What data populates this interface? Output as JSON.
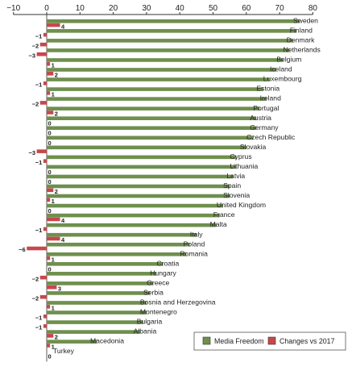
{
  "chart_data": {
    "type": "bar",
    "orientation": "horizontal",
    "xlim": [
      -10,
      80
    ],
    "xticks": [
      "−10",
      "0",
      "10",
      "20",
      "30",
      "40",
      "50",
      "60",
      "70",
      "80"
    ],
    "grid": false,
    "legend_position": "bottom-right",
    "categories": [
      "Sweden",
      "Finland",
      "Denmark",
      "Netherlands",
      "Belgium",
      "Iceland",
      "Luxembourg",
      "Estonia",
      "Ireland",
      "Portugal",
      "Austria",
      "Germany",
      "Czech Republic",
      "Slovakia",
      "Cyprus",
      "Lithuania",
      "Latvia",
      "Spain",
      "Slovenia",
      "United Kingdom",
      "France",
      "Malta",
      "Italy",
      "Poland",
      "Romania",
      "Croatia",
      "Hungary",
      "Greece",
      "Serbia",
      "Bosnia and Herzegovina",
      "Montenegro",
      "Bulgaria",
      "Albania",
      "Macedonia",
      "Turkey"
    ],
    "series": [
      {
        "name": "Media Freedom",
        "color": "#6f8f4e",
        "values": [
          76,
          75,
          74,
          73,
          71,
          69,
          67,
          65,
          66,
          64,
          63,
          63,
          62,
          60,
          57,
          57,
          56,
          55,
          55,
          53,
          52,
          51,
          45,
          43,
          42,
          35,
          33,
          32,
          31,
          30,
          30,
          29,
          28,
          15,
          0
        ]
      },
      {
        "name": "Changes vs 2017",
        "color": "#c8474b",
        "values": [
          4,
          -1,
          -2,
          -3,
          1,
          2,
          -1,
          1,
          -2,
          2,
          0,
          0,
          0,
          -3,
          -1,
          0,
          0,
          2,
          1,
          0,
          4,
          -1,
          4,
          -6,
          1,
          0,
          -2,
          3,
          -2,
          1,
          -1,
          -1,
          2,
          1,
          0
        ],
        "labels": [
          "4",
          "−1",
          "−2",
          "−3",
          "1",
          "2",
          "−1",
          "1",
          "−2",
          "2",
          "0",
          "0",
          "0",
          "−3",
          "−1",
          "0",
          "0",
          "2",
          "1",
          "0",
          "4",
          "−1",
          "4",
          "−6",
          "1",
          "0",
          "−2",
          "3",
          "−2",
          "1",
          "−1",
          "−1",
          "2",
          "1",
          "0"
        ]
      }
    ]
  }
}
